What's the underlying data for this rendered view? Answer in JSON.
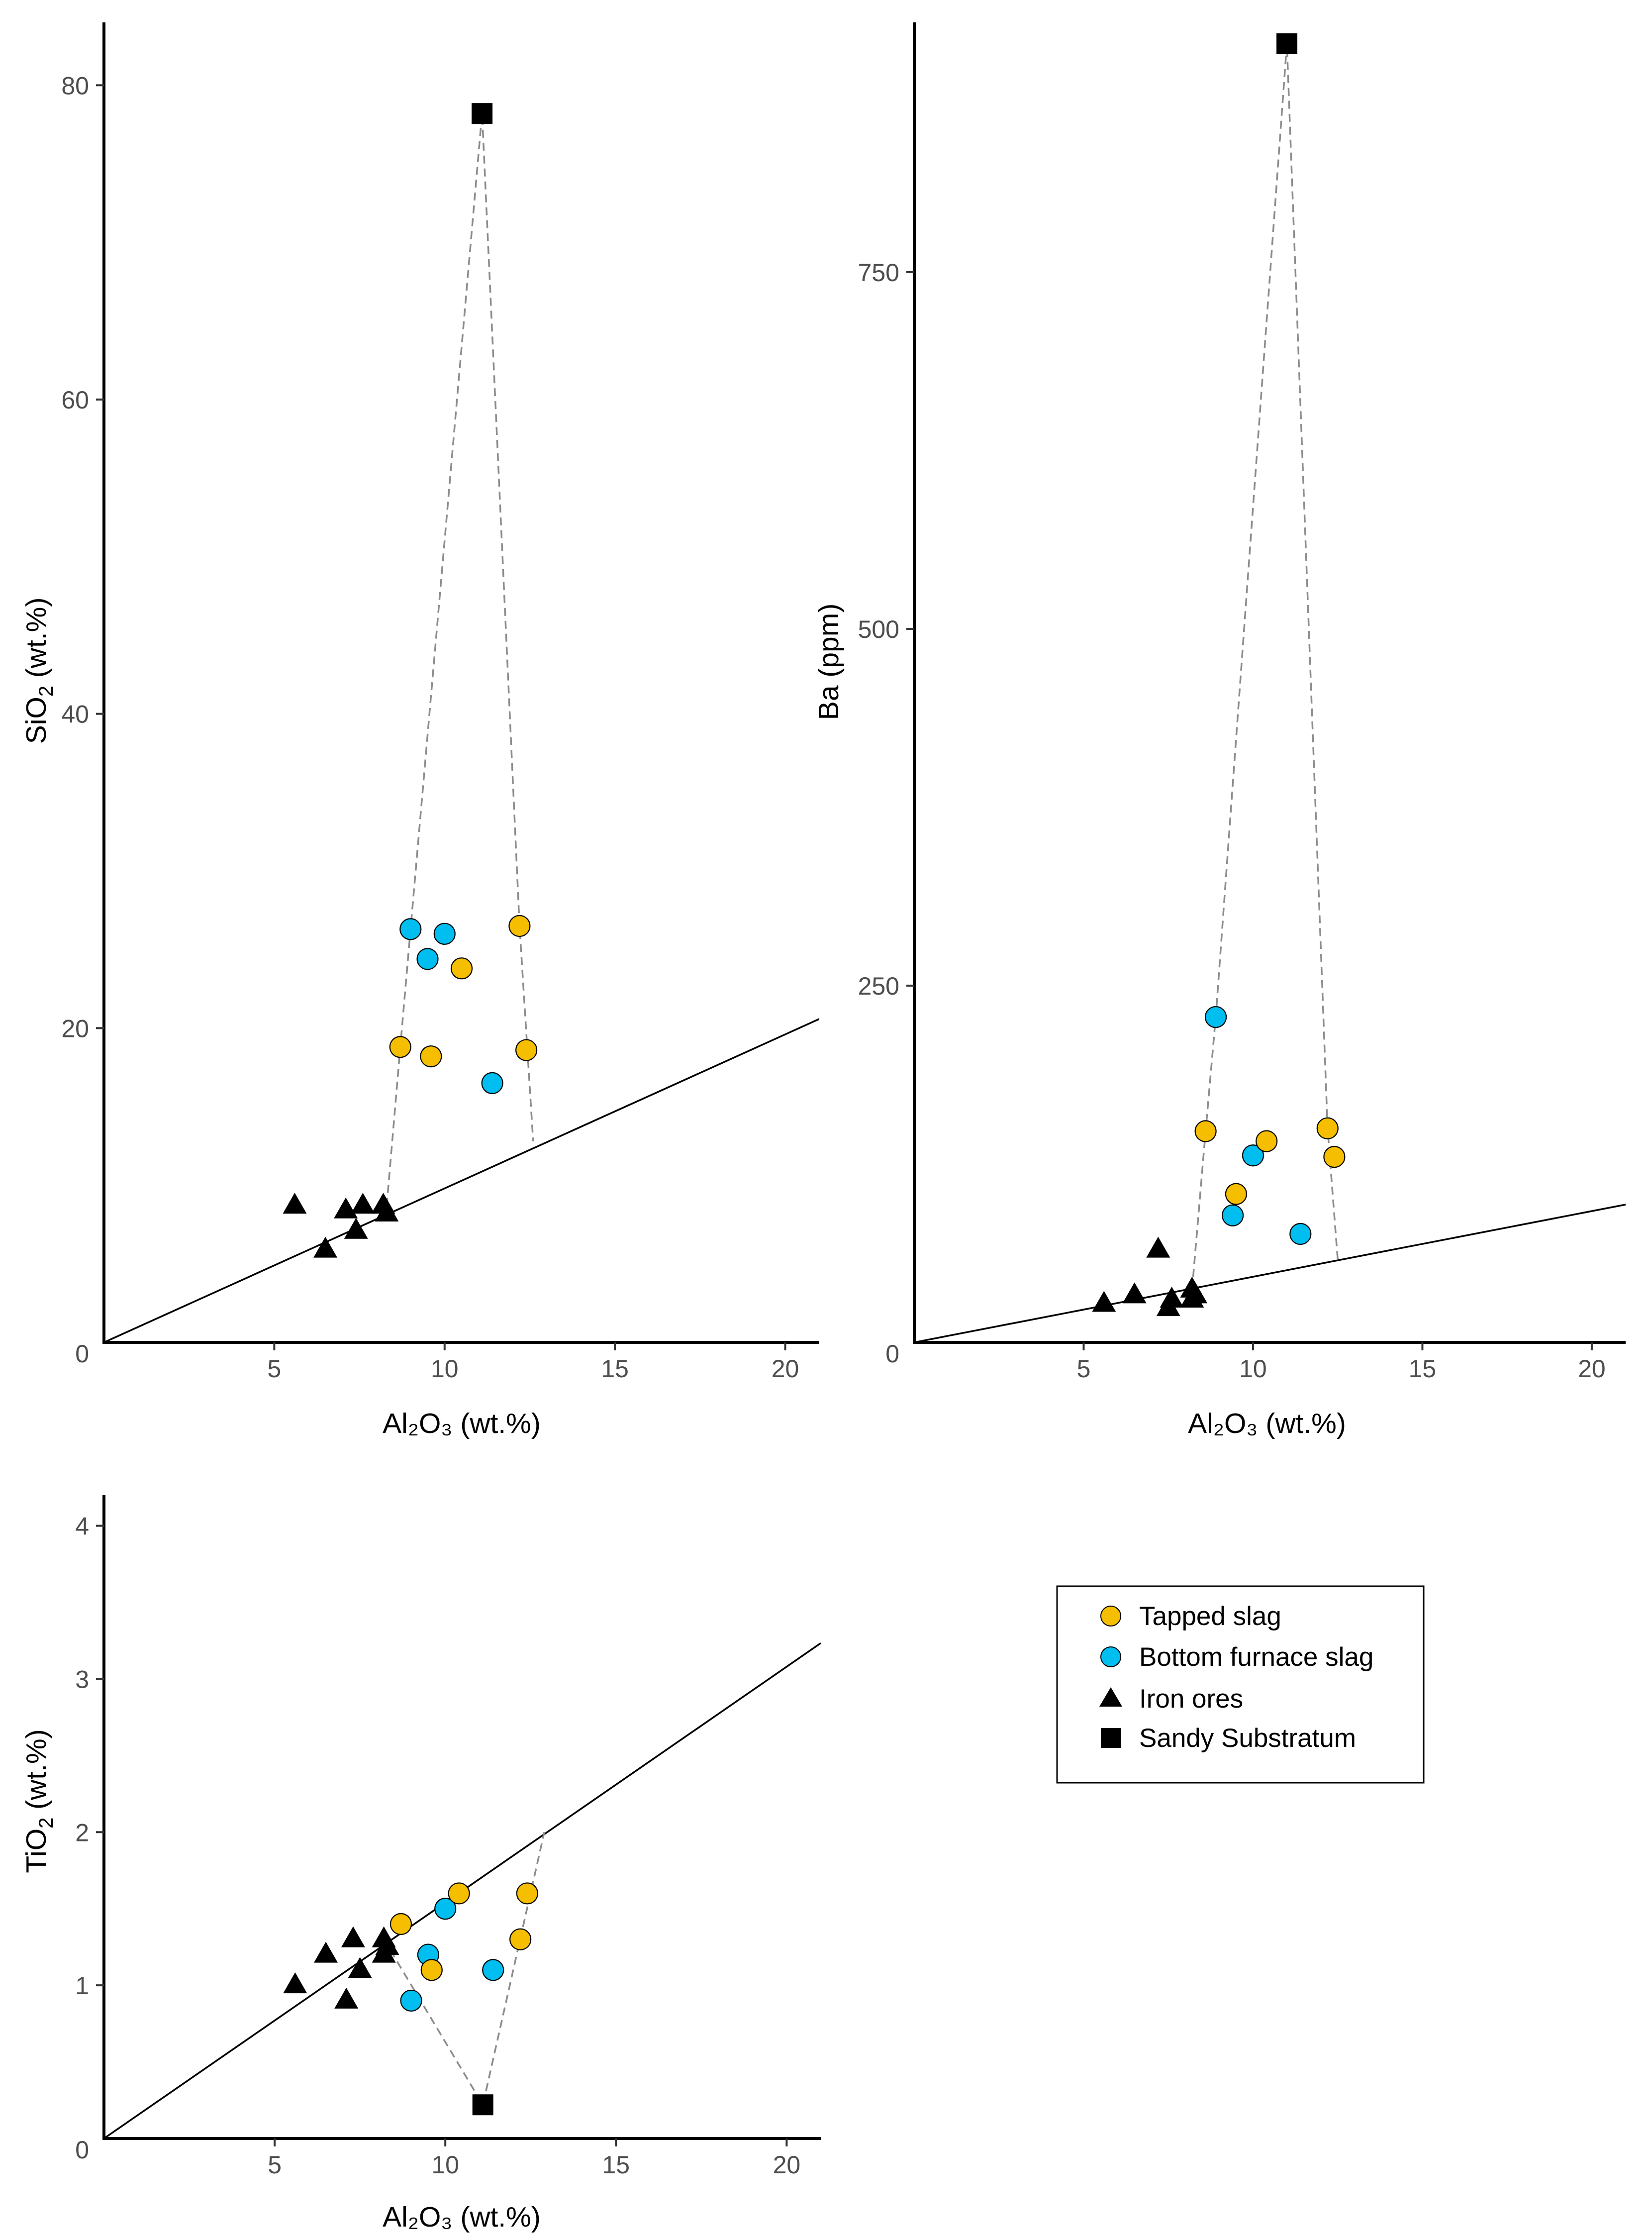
{
  "legend": {
    "items": [
      {
        "label": "Tapped slag",
        "shape": "circle",
        "color": "#F5BE00"
      },
      {
        "label": "Bottom furnace slag",
        "shape": "circle",
        "color": "#00BEF0"
      },
      {
        "label": "Iron ores",
        "shape": "triangle",
        "color": "#000000"
      },
      {
        "label": "Sandy Substratum",
        "shape": "square",
        "color": "#000000"
      }
    ]
  },
  "chart_data": [
    {
      "type": "scatter",
      "id": "sio2",
      "xlabel": "Al₂O₃ (wt.%)",
      "ylabel": {
        "base": "SiO",
        "sub": "2",
        "rest": " (wt.%)"
      },
      "xlim": [
        0,
        21
      ],
      "ylim": [
        0,
        84
      ],
      "xticks": [
        5,
        10,
        15,
        20
      ],
      "yticks": [
        20,
        40,
        60,
        80
      ],
      "origin_label": "0",
      "grid": false,
      "fit_line": {
        "slope": 0.98,
        "intercept": 0
      },
      "series": [
        {
          "name": "Tapped slag",
          "points": [
            [
              8.7,
              18.8
            ],
            [
              9.6,
              18.2
            ],
            [
              10.5,
              23.8
            ],
            [
              12.2,
              26.5
            ],
            [
              12.4,
              18.6
            ]
          ]
        },
        {
          "name": "Bottom furnace slag",
          "points": [
            [
              9.0,
              26.3
            ],
            [
              9.5,
              24.4
            ],
            [
              10.0,
              26.0
            ],
            [
              11.4,
              16.5
            ]
          ]
        },
        {
          "name": "Iron ores",
          "points": [
            [
              5.6,
              8.7
            ],
            [
              6.5,
              5.9
            ],
            [
              7.1,
              8.4
            ],
            [
              7.4,
              7.1
            ],
            [
              7.6,
              8.7
            ],
            [
              8.2,
              8.7
            ],
            [
              8.3,
              8.2
            ]
          ]
        },
        {
          "name": "Sandy Substratum",
          "points": [
            [
              11.1,
              78.2
            ]
          ]
        }
      ],
      "dashed_path": [
        [
          8.3,
          8.7
        ],
        [
          8.7,
          18.8
        ],
        [
          9.0,
          26.3
        ],
        [
          11.1,
          78.2
        ],
        [
          12.2,
          26.5
        ],
        [
          12.6,
          12.8
        ]
      ]
    },
    {
      "type": "scatter",
      "id": "ba",
      "xlabel": "Al₂O₃ (wt.%)",
      "ylabel": {
        "base": "Ba (ppm)",
        "sub": "",
        "rest": ""
      },
      "xlim": [
        0,
        21
      ],
      "ylim": [
        0,
        925
      ],
      "xticks": [
        5,
        10,
        15,
        20
      ],
      "yticks": [
        250,
        500,
        750
      ],
      "origin_label": "0",
      "grid": false,
      "fit_line": {
        "slope": 4.6,
        "intercept": 0
      },
      "series": [
        {
          "name": "Tapped slag",
          "points": [
            [
              8.6,
              148
            ],
            [
              9.5,
              104
            ],
            [
              10.4,
              141
            ],
            [
              12.2,
              150
            ],
            [
              12.4,
              130
            ]
          ]
        },
        {
          "name": "Bottom furnace slag",
          "points": [
            [
              8.9,
              228
            ],
            [
              9.4,
              89
            ],
            [
              10.0,
              131
            ],
            [
              11.4,
              76
            ]
          ]
        },
        {
          "name": "Iron ores",
          "points": [
            [
              5.6,
              27
            ],
            [
              6.5,
              33
            ],
            [
              7.2,
              65
            ],
            [
              7.5,
              24
            ],
            [
              7.6,
              30
            ],
            [
              8.2,
              30
            ],
            [
              8.2,
              37
            ],
            [
              8.3,
              33
            ]
          ]
        },
        {
          "name": "Sandy Substratum",
          "points": [
            [
              11.0,
              910
            ]
          ]
        }
      ],
      "dashed_path": [
        [
          8.2,
          37
        ],
        [
          8.6,
          148
        ],
        [
          8.9,
          228
        ],
        [
          11.0,
          910
        ],
        [
          12.2,
          150
        ],
        [
          12.5,
          58
        ]
      ]
    },
    {
      "type": "scatter",
      "id": "tio2",
      "xlabel": "Al₂O₃ (wt.%)",
      "ylabel": {
        "base": "TiO",
        "sub": "2",
        "rest": " (wt.%)"
      },
      "xlim": [
        0,
        21
      ],
      "ylim": [
        0,
        4.2
      ],
      "xticks": [
        5,
        10,
        15,
        20
      ],
      "yticks": [
        1,
        2,
        3,
        4
      ],
      "origin_label": "0",
      "grid": false,
      "fit_line": {
        "slope": 0.154,
        "intercept": 0
      },
      "series": [
        {
          "name": "Tapped slag",
          "points": [
            [
              8.7,
              1.4
            ],
            [
              9.6,
              1.1
            ],
            [
              10.4,
              1.6
            ],
            [
              12.2,
              1.3
            ],
            [
              12.4,
              1.6
            ]
          ]
        },
        {
          "name": "Bottom furnace slag",
          "points": [
            [
              9.0,
              0.9
            ],
            [
              9.5,
              1.2
            ],
            [
              10.0,
              1.5
            ],
            [
              11.4,
              1.1
            ]
          ]
        },
        {
          "name": "Iron ores",
          "points": [
            [
              5.6,
              1.0
            ],
            [
              6.5,
              1.2
            ],
            [
              7.1,
              0.9
            ],
            [
              7.3,
              1.3
            ],
            [
              7.5,
              1.1
            ],
            [
              8.2,
              1.3
            ],
            [
              8.2,
              1.2
            ],
            [
              8.3,
              1.25
            ]
          ]
        },
        {
          "name": "Sandy Substratum",
          "points": [
            [
              11.1,
              0.22
            ]
          ]
        }
      ],
      "dashed_path": [
        [
          8.2,
          1.3
        ],
        [
          11.1,
          0.22
        ],
        [
          12.9,
          2.0
        ]
      ]
    }
  ]
}
